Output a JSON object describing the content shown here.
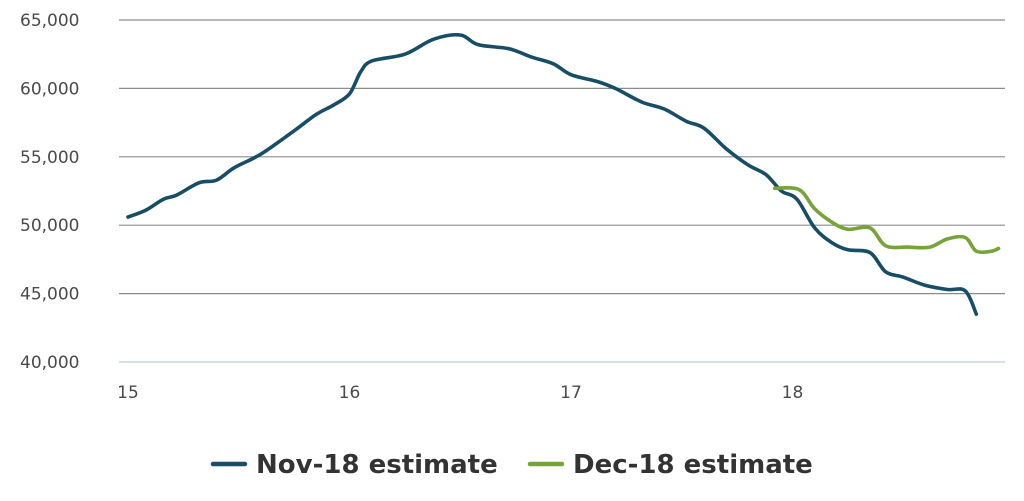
{
  "chart_data": {
    "type": "line",
    "title": "",
    "xlabel": "",
    "ylabel": "",
    "xlim": [
      15,
      18.93
    ],
    "ylim": [
      40000,
      65000
    ],
    "xticks": [
      15,
      16,
      17,
      18
    ],
    "xtick_labels": [
      "15",
      "16",
      "17",
      "18"
    ],
    "yticks": [
      40000,
      45000,
      50000,
      55000,
      60000,
      65000
    ],
    "ytick_labels": [
      "40,000",
      "45,000",
      "50,000",
      "55,000",
      "60,000",
      "65,000"
    ],
    "grid": true,
    "legend": "bottom",
    "series": [
      {
        "name": "Nov-18 estimate",
        "color": "#174e66",
        "points": [
          [
            15.0,
            50600
          ],
          [
            15.08,
            51100
          ],
          [
            15.16,
            51900
          ],
          [
            15.22,
            52200
          ],
          [
            15.32,
            53100
          ],
          [
            15.4,
            53300
          ],
          [
            15.48,
            54200
          ],
          [
            15.6,
            55200
          ],
          [
            15.75,
            56900
          ],
          [
            15.85,
            58100
          ],
          [
            15.93,
            58800
          ],
          [
            16.0,
            59600
          ],
          [
            16.05,
            61200
          ],
          [
            16.1,
            62000
          ],
          [
            16.25,
            62500
          ],
          [
            16.38,
            63600
          ],
          [
            16.5,
            63900
          ],
          [
            16.58,
            63200
          ],
          [
            16.72,
            62900
          ],
          [
            16.82,
            62300
          ],
          [
            16.92,
            61800
          ],
          [
            17.0,
            61000
          ],
          [
            17.12,
            60500
          ],
          [
            17.2,
            60000
          ],
          [
            17.32,
            59000
          ],
          [
            17.42,
            58500
          ],
          [
            17.52,
            57600
          ],
          [
            17.6,
            57100
          ],
          [
            17.7,
            55600
          ],
          [
            17.8,
            54400
          ],
          [
            17.88,
            53700
          ],
          [
            17.95,
            52500
          ],
          [
            18.02,
            51900
          ],
          [
            18.1,
            49800
          ],
          [
            18.18,
            48700
          ],
          [
            18.25,
            48200
          ],
          [
            18.35,
            48000
          ],
          [
            18.42,
            46600
          ],
          [
            18.5,
            46200
          ],
          [
            18.6,
            45600
          ],
          [
            18.7,
            45300
          ],
          [
            18.78,
            45200
          ],
          [
            18.83,
            43500
          ]
        ]
      },
      {
        "name": "Dec-18 estimate",
        "color": "#76a33a",
        "points": [
          [
            17.92,
            52700
          ],
          [
            18.03,
            52600
          ],
          [
            18.1,
            51200
          ],
          [
            18.18,
            50200
          ],
          [
            18.25,
            49700
          ],
          [
            18.35,
            49800
          ],
          [
            18.42,
            48500
          ],
          [
            18.52,
            48400
          ],
          [
            18.62,
            48400
          ],
          [
            18.7,
            49000
          ],
          [
            18.78,
            49100
          ],
          [
            18.83,
            48100
          ],
          [
            18.9,
            48100
          ],
          [
            18.93,
            48300
          ]
        ]
      }
    ]
  }
}
